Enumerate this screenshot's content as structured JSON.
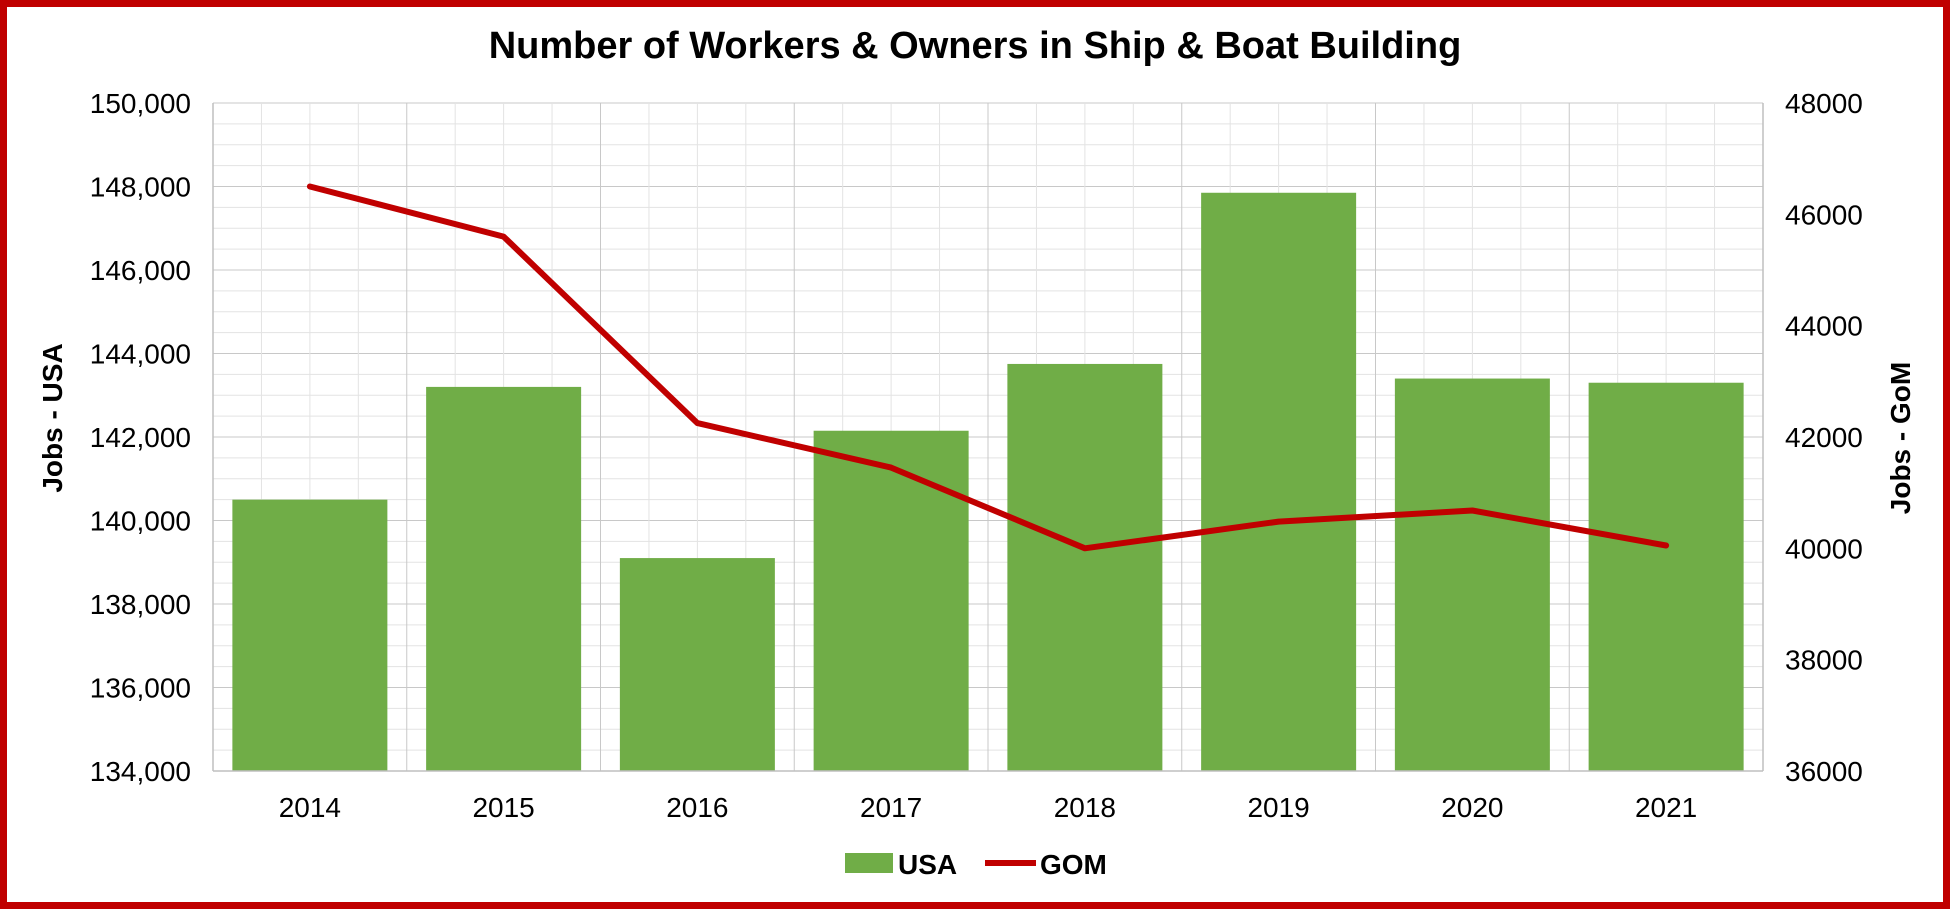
{
  "chart_data": {
    "type": "bar",
    "title": "Number of Workers & Owners in Ship & Boat Building",
    "categories": [
      "2014",
      "2015",
      "2016",
      "2017",
      "2018",
      "2019",
      "2020",
      "2021"
    ],
    "series": [
      {
        "name": "USA",
        "type": "bar",
        "axis": "left",
        "color": "#70ad47",
        "values": [
          140500,
          143200,
          139100,
          142150,
          143750,
          147850,
          143400,
          143300
        ]
      },
      {
        "name": "GOM",
        "type": "line",
        "axis": "right",
        "color": "#c00000",
        "values": [
          46500,
          45600,
          42250,
          41450,
          40000,
          40480,
          40680,
          40050
        ]
      }
    ],
    "ylabel_left": "Jobs - USA",
    "ylabel_right": "Jobs - GoM",
    "ylim_left": [
      134000,
      150000
    ],
    "ylim_right": [
      36000,
      48000
    ],
    "yticks_left": [
      "134,000",
      "136,000",
      "138,000",
      "140,000",
      "142,000",
      "144,000",
      "146,000",
      "148,000",
      "150,000"
    ],
    "yticks_right": [
      "36000",
      "38000",
      "40000",
      "42000",
      "44000",
      "46000",
      "48000"
    ],
    "grid": true,
    "legend_position": "bottom"
  }
}
